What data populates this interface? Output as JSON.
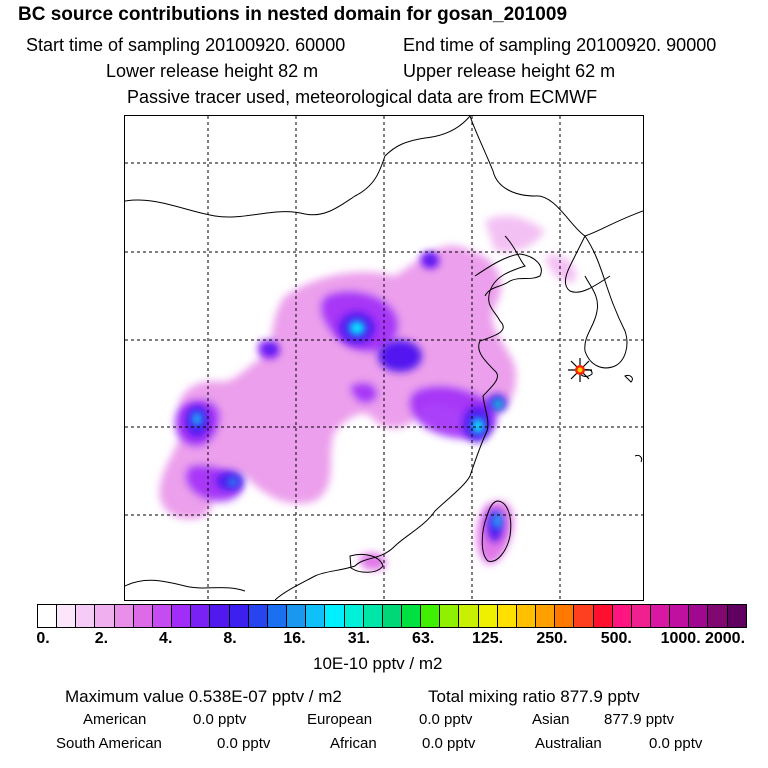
{
  "header": {
    "title": "BC  source contributions in nested domain for gosan_201009",
    "start_time": "Start time of sampling 20100920. 60000",
    "end_time": "End time of sampling 20100920. 90000",
    "lower_release": "Lower release height   82 m",
    "upper_release": "Upper release height   62 m",
    "note": "Passive tracer used, meteorological data are from ECMWF"
  },
  "chart_data": {
    "type": "heatmap",
    "title": "BC  source contributions in nested domain for gosan_201009",
    "units": "10E-10 pptv / m2",
    "colorbar_ticks": [
      "0.",
      "2.",
      "4.",
      "8.",
      "16.",
      "31.",
      "63.",
      "125.",
      "250.",
      "500.",
      "1000.",
      "2000."
    ],
    "colorbar_colors": [
      "#ffffff",
      "#fbe6fb",
      "#f5ccf5",
      "#f0b0f0",
      "#e98ee9",
      "#dd6ae6",
      "#c44cf0",
      "#a12ef8",
      "#7a22f5",
      "#5218f0",
      "#3d20f0",
      "#2844f0",
      "#1a70f0",
      "#1a98f0",
      "#10c0f8",
      "#00f0ff",
      "#00f0d8",
      "#00e6a8",
      "#00d878",
      "#00e040",
      "#40f000",
      "#90f000",
      "#c8f000",
      "#eef000",
      "#ffe000",
      "#ffc000",
      "#ffa000",
      "#ff7800",
      "#ff4020",
      "#ff1030",
      "#ff1480",
      "#f02090",
      "#d818a0",
      "#c010a0",
      "#a00890",
      "#800870",
      "#600060"
    ],
    "receptor": "gosan",
    "grid": "dashed"
  },
  "stats": {
    "max_value": "Maximum value  0.538E-07 pptv / m2",
    "total_mixing": "Total mixing ratio      877.9 pptv",
    "american_label": "American",
    "american_value": "0.0 pptv",
    "european_label": "European",
    "european_value": "0.0 pptv",
    "asian_label": "Asian",
    "asian_value": "877.9 pptv",
    "south_american_label": "South American",
    "south_american_value": "0.0 pptv",
    "african_label": "African",
    "african_value": "0.0 pptv",
    "australian_label": "Australian",
    "australian_value": "0.0 pptv"
  }
}
